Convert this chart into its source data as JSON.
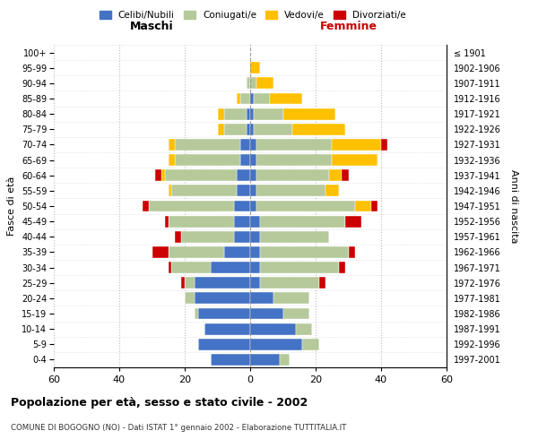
{
  "age_groups": [
    "0-4",
    "5-9",
    "10-14",
    "15-19",
    "20-24",
    "25-29",
    "30-34",
    "35-39",
    "40-44",
    "45-49",
    "50-54",
    "55-59",
    "60-64",
    "65-69",
    "70-74",
    "75-79",
    "80-84",
    "85-89",
    "90-94",
    "95-99",
    "100+"
  ],
  "birth_years": [
    "1997-2001",
    "1992-1996",
    "1987-1991",
    "1982-1986",
    "1977-1981",
    "1972-1976",
    "1967-1971",
    "1962-1966",
    "1957-1961",
    "1952-1956",
    "1947-1951",
    "1942-1946",
    "1937-1941",
    "1932-1936",
    "1927-1931",
    "1922-1926",
    "1917-1921",
    "1912-1916",
    "1907-1911",
    "1902-1906",
    "≤ 1901"
  ],
  "colors": {
    "celibi": "#4472c4",
    "coniugati": "#b5c99a",
    "vedovi": "#ffc000",
    "divorziati": "#cc0000"
  },
  "maschi": {
    "celibi": [
      12,
      16,
      14,
      16,
      17,
      17,
      12,
      8,
      5,
      5,
      5,
      4,
      4,
      3,
      3,
      1,
      1,
      0,
      0,
      0,
      0
    ],
    "coniugati": [
      0,
      0,
      0,
      1,
      3,
      3,
      12,
      17,
      16,
      20,
      26,
      20,
      22,
      20,
      20,
      7,
      7,
      3,
      1,
      0,
      0
    ],
    "vedovi": [
      0,
      0,
      0,
      0,
      0,
      0,
      0,
      0,
      0,
      0,
      0,
      1,
      1,
      2,
      2,
      2,
      2,
      1,
      0,
      0,
      0
    ],
    "divorziati": [
      0,
      0,
      0,
      0,
      0,
      1,
      1,
      5,
      2,
      1,
      2,
      0,
      2,
      0,
      0,
      0,
      0,
      0,
      0,
      0,
      0
    ]
  },
  "femmine": {
    "nubili": [
      9,
      16,
      14,
      10,
      7,
      3,
      3,
      3,
      3,
      3,
      2,
      2,
      2,
      2,
      2,
      1,
      1,
      1,
      0,
      0,
      0
    ],
    "coniugate": [
      3,
      5,
      5,
      8,
      11,
      18,
      24,
      27,
      21,
      26,
      30,
      21,
      22,
      23,
      23,
      12,
      9,
      5,
      2,
      0,
      0
    ],
    "vedove": [
      0,
      0,
      0,
      0,
      0,
      0,
      0,
      0,
      0,
      0,
      5,
      4,
      4,
      14,
      15,
      16,
      16,
      10,
      5,
      3,
      0
    ],
    "divorziate": [
      0,
      0,
      0,
      0,
      0,
      2,
      2,
      2,
      0,
      5,
      2,
      0,
      2,
      0,
      2,
      0,
      0,
      0,
      0,
      0,
      0
    ]
  },
  "title": "Popolazione per età, sesso e stato civile - 2002",
  "subtitle": "COMUNE DI BOGOGNO (NO) - Dati ISTAT 1° gennaio 2002 - Elaborazione TUTTITALIA.IT",
  "xlabel_maschi": "Maschi",
  "xlabel_femmine": "Femmine",
  "ylabel_fasce": "Fasce di età",
  "ylabel_anni": "Anni di nascita",
  "xlim": 60,
  "legend_labels": [
    "Celibi/Nubili",
    "Coniugati/e",
    "Vedovi/e",
    "Divorziati/e"
  ],
  "bg_color": "#ffffff",
  "grid_color": "#aaaaaa",
  "femmine_color": "#cc0000"
}
